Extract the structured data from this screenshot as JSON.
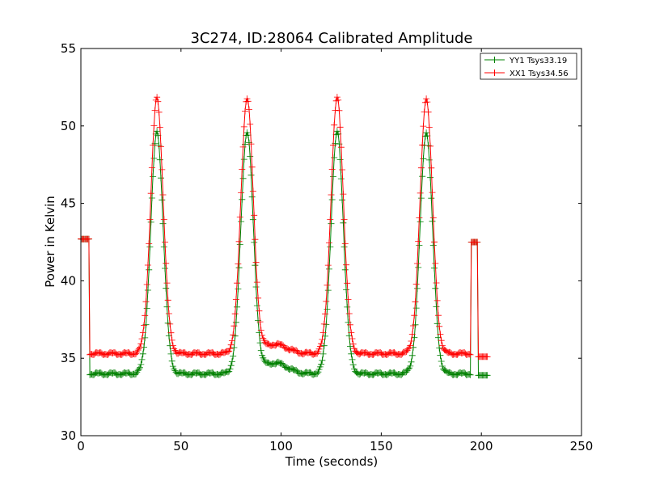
{
  "chart_data": {
    "type": "line",
    "title": "3C274, ID:28064 Calibrated Amplitude",
    "xlabel": "Time (seconds)",
    "ylabel": "Power in Kelvin",
    "xlim": [
      0,
      250
    ],
    "ylim": [
      30,
      55
    ],
    "xticks": [
      0,
      50,
      100,
      150,
      200,
      250
    ],
    "yticks": [
      30,
      35,
      40,
      45,
      50,
      55
    ],
    "grid": false,
    "legend_position": "top-right",
    "peak_centers": [
      38,
      83,
      128,
      172.5
    ],
    "series": [
      {
        "name": "YY1 Tsys33.19",
        "color": "#008000",
        "marker": "+",
        "baseline": 34.0,
        "peak": 49.6,
        "bump": 34.7,
        "start_level": 42.7,
        "end_spike_level": 42.5,
        "end_level": 33.9
      },
      {
        "name": "XX1 Tsys34.56",
        "color": "#ff0000",
        "marker": "+",
        "baseline": 35.3,
        "peak": 51.8,
        "bump": 35.9,
        "start_level": 42.7,
        "end_spike_level": 42.5,
        "end_level": 35.1
      }
    ]
  }
}
